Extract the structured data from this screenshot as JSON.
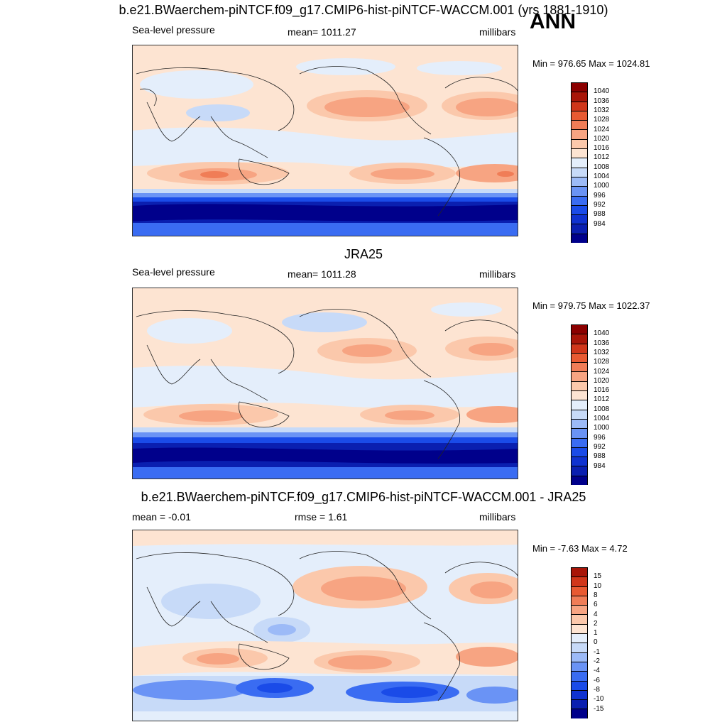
{
  "header": {
    "title": "b.e21.BWaerchem-piNTCF.f09_g17.CMIP6-hist-piNTCF-WACCM.001 (yrs 1881-1910)",
    "season": "ANN"
  },
  "colors": {
    "slp": [
      "#00008b",
      "#0a1fb0",
      "#0f32d0",
      "#1a4be8",
      "#3a6cf2",
      "#6a93f5",
      "#9cbaf7",
      "#c7daf8",
      "#e4eefb",
      "#fde4d2",
      "#fbc8ab",
      "#f7a482",
      "#f07d57",
      "#e85a32",
      "#d0361a",
      "#a81508",
      "#8b0000"
    ],
    "diff": [
      "#00008b",
      "#0a1fb0",
      "#0f32d0",
      "#1a4be8",
      "#3a6cf2",
      "#6a93f5",
      "#9cbaf7",
      "#c7daf8",
      "#e4eefb",
      "#fde4d2",
      "#fbc8ab",
      "#f7a482",
      "#f07d57",
      "#e85a32",
      "#d0361a",
      "#a81508"
    ]
  },
  "panels": {
    "model": {
      "variable": "Sea-level pressure",
      "mean": "mean= 1011.27",
      "units": "millibars",
      "minmax": "Min = 976.65 Max = 1024.81",
      "ticks": [
        "1040",
        "1036",
        "1032",
        "1028",
        "1024",
        "1020",
        "1016",
        "1012",
        "1008",
        "1004",
        "1000",
        "996",
        "992",
        "988",
        "984"
      ]
    },
    "obs": {
      "title": "JRA25",
      "variable": "Sea-level pressure",
      "mean": "mean= 1011.28",
      "units": "millibars",
      "minmax": "Min = 979.75 Max = 1022.37",
      "ticks": [
        "1040",
        "1036",
        "1032",
        "1028",
        "1024",
        "1020",
        "1016",
        "1012",
        "1008",
        "1004",
        "1000",
        "996",
        "992",
        "988",
        "984"
      ]
    },
    "diff": {
      "title": "b.e21.BWaerchem-piNTCF.f09_g17.CMIP6-hist-piNTCF-WACCM.001 - JRA25",
      "mean": "mean =  -0.01",
      "rmse": "rmse =   1.61",
      "units": "millibars",
      "minmax": "Min =  -7.63 Max =   4.72",
      "ticks": [
        "15",
        "10",
        "8",
        "6",
        "4",
        "2",
        "1",
        "0",
        "-1",
        "-2",
        "-4",
        "-6",
        "-8",
        "-10",
        "-15"
      ]
    }
  }
}
